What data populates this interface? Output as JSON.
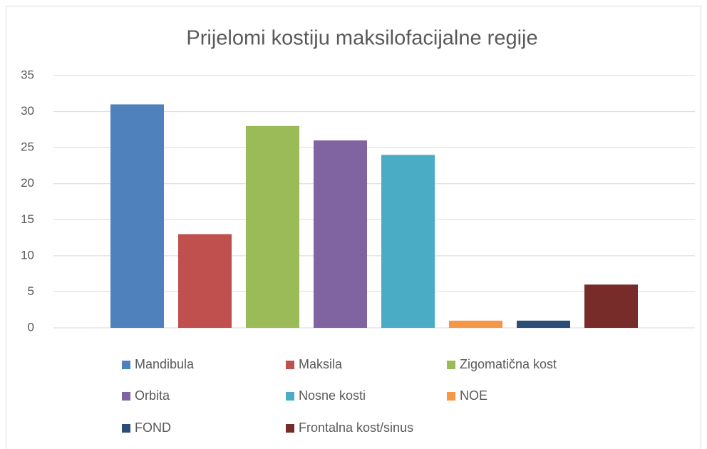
{
  "chart_data": {
    "type": "bar",
    "title": "Prijelomi kostiju maksilofacijalne regije",
    "categories": [
      null
    ],
    "series": [
      {
        "name": "Mandibula",
        "color": "#4f81bd",
        "values": [
          31
        ]
      },
      {
        "name": "Maksila",
        "color": "#c0504d",
        "values": [
          13
        ]
      },
      {
        "name": "Zigomatična kost",
        "color": "#9bbb59",
        "values": [
          28
        ]
      },
      {
        "name": "Orbita",
        "color": "#8064a2",
        "values": [
          26
        ]
      },
      {
        "name": "Nosne kosti",
        "color": "#4bacc6",
        "values": [
          24
        ]
      },
      {
        "name": "NOE",
        "color": "#f79646",
        "values": [
          1
        ]
      },
      {
        "name": "FOND",
        "color": "#2c4d75",
        "values": [
          1
        ]
      },
      {
        "name": "Frontalna kost/sinus",
        "color": "#772c2a",
        "values": [
          6
        ]
      }
    ],
    "ylim": [
      0,
      35
    ],
    "yticks": [
      0,
      5,
      10,
      15,
      20,
      25,
      30,
      35
    ],
    "grid": true,
    "legend": "bottom"
  }
}
